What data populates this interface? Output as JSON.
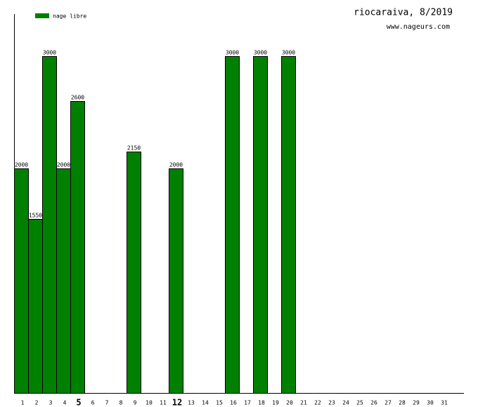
{
  "chart_data": {
    "type": "bar",
    "title": "riocaraiva, 8/2019",
    "subtitle": "www.nageurs.com",
    "series": [
      {
        "name": "nage libre",
        "color": "#008000",
        "values": [
          2000,
          1550,
          3000,
          2000,
          2600,
          null,
          null,
          null,
          2150,
          null,
          null,
          2000,
          null,
          null,
          null,
          3000,
          null,
          3000,
          null,
          3000,
          null,
          null,
          null,
          null,
          null,
          null,
          null,
          null,
          null,
          null,
          null
        ]
      }
    ],
    "categories": [
      "1",
      "2",
      "3",
      "4",
      "5",
      "6",
      "7",
      "8",
      "9",
      "10",
      "11",
      "12",
      "13",
      "14",
      "15",
      "16",
      "17",
      "18",
      "19",
      "20",
      "21",
      "22",
      "23",
      "24",
      "25",
      "26",
      "27",
      "28",
      "29",
      "30",
      "31"
    ],
    "bold_indices": [
      4,
      11
    ],
    "ylim": [
      0,
      3375
    ]
  }
}
